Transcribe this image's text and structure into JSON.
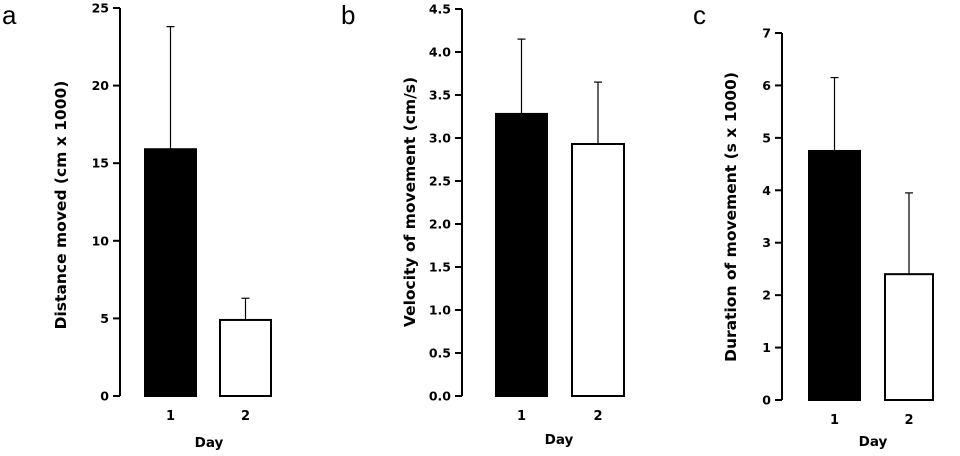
{
  "chart_data": [
    {
      "type": "bar",
      "panel": "a",
      "ylabel": "Distance moved (cm x 1000)",
      "xlabel": "Day",
      "categories": [
        "1",
        "2"
      ],
      "values": [
        15.9,
        4.9
      ],
      "errors": [
        7.9,
        1.4
      ],
      "fills": [
        "#000000",
        "#ffffff"
      ],
      "ylim": [
        0,
        25
      ],
      "yticks": [
        0,
        5,
        10,
        15,
        20,
        25
      ],
      "ytick_labels": [
        "0",
        "5",
        "10",
        "15",
        "20",
        "25"
      ]
    },
    {
      "type": "bar",
      "panel": "b",
      "ylabel": "Velocity of movement (cm/s)",
      "xlabel": "Day",
      "categories": [
        "1",
        "2"
      ],
      "values": [
        3.28,
        2.93
      ],
      "errors": [
        0.87,
        0.72
      ],
      "fills": [
        "#000000",
        "#ffffff"
      ],
      "ylim": [
        0,
        4.5
      ],
      "yticks": [
        0,
        0.5,
        1.0,
        1.5,
        2.0,
        2.5,
        3.0,
        3.5,
        4.0,
        4.5
      ],
      "ytick_labels": [
        "0.0",
        "0.5",
        "1.0",
        "1.5",
        "2.0",
        "2.5",
        "3.0",
        "3.5",
        "4.0",
        "4.5"
      ]
    },
    {
      "type": "bar",
      "panel": "c",
      "ylabel": "Duration of movement (s x 1000)",
      "xlabel": "Day",
      "categories": [
        "1",
        "2"
      ],
      "values": [
        4.75,
        2.4
      ],
      "errors": [
        1.4,
        1.55
      ],
      "fills": [
        "#000000",
        "#ffffff"
      ],
      "ylim": [
        0,
        7
      ],
      "yticks": [
        0,
        1,
        2,
        3,
        4,
        5,
        6,
        7
      ],
      "ytick_labels": [
        "0",
        "1",
        "2",
        "3",
        "4",
        "5",
        "6",
        "7"
      ]
    }
  ]
}
